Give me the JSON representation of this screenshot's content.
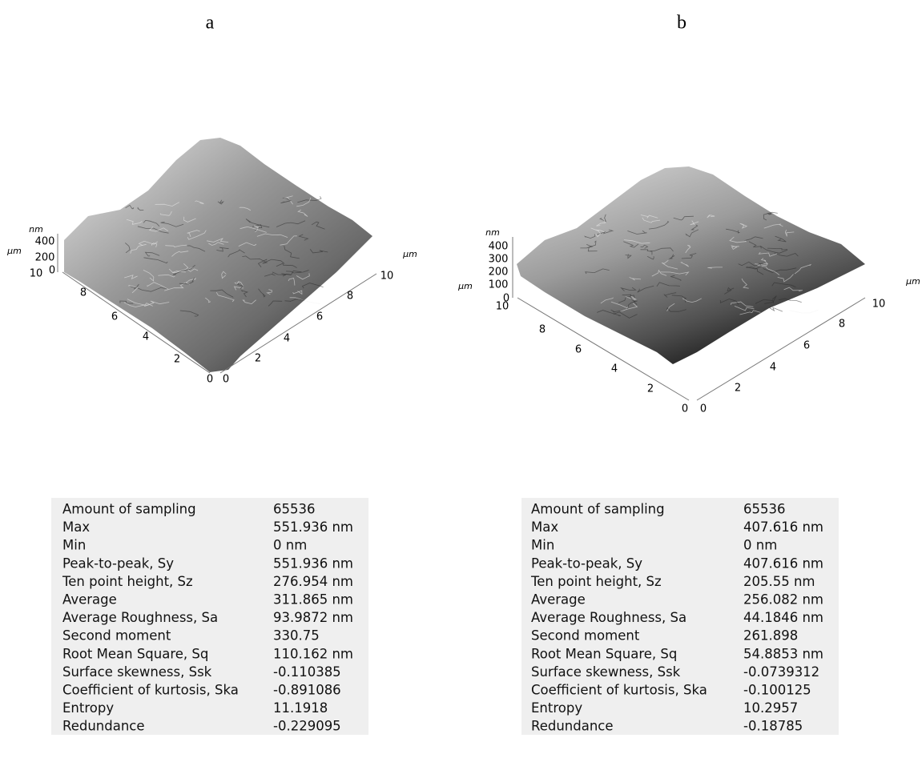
{
  "panels": [
    {
      "label": "a",
      "z_unit": "nm",
      "left_unit": "µm",
      "right_unit": "µm",
      "z_ticks": [
        "400",
        "200",
        "0"
      ],
      "left_ticks": [
        "10",
        "8",
        "6",
        "4",
        "2",
        "0"
      ],
      "right_ticks": [
        "0",
        "2",
        "4",
        "6",
        "8",
        "10"
      ],
      "table": [
        [
          "Amount of sampling",
          "65536"
        ],
        [
          "Max",
          "551.936 nm"
        ],
        [
          "Min",
          "0 nm"
        ],
        [
          "Peak-to-peak, Sy",
          "551.936 nm"
        ],
        [
          "Ten point height, Sz",
          "276.954 nm"
        ],
        [
          "Average",
          "311.865 nm"
        ],
        [
          "Average Roughness, Sa",
          "93.9872 nm"
        ],
        [
          "Second moment",
          "330.75"
        ],
        [
          "Root Mean Square, Sq",
          "110.162 nm"
        ],
        [
          "Surface skewness, Ssk",
          "-0.110385"
        ],
        [
          "Coefficient of kurtosis, Ska",
          "-0.891086"
        ],
        [
          "Entropy",
          "11.1918"
        ],
        [
          "Redundance",
          "-0.229095"
        ]
      ]
    },
    {
      "label": "b",
      "z_unit": "nm",
      "left_unit": "µm",
      "right_unit": "µm",
      "z_ticks": [
        "400",
        "300",
        "200",
        "100",
        "0"
      ],
      "left_ticks": [
        "10",
        "8",
        "6",
        "4",
        "2",
        "0"
      ],
      "right_ticks": [
        "0",
        "2",
        "4",
        "6",
        "8",
        "10"
      ],
      "table": [
        [
          "Amount of sampling",
          "65536"
        ],
        [
          "Max",
          "407.616 nm"
        ],
        [
          "Min",
          "0 nm"
        ],
        [
          "Peak-to-peak, Sy",
          "407.616 nm"
        ],
        [
          "Ten point height, Sz",
          "205.55 nm"
        ],
        [
          "Average",
          "256.082 nm"
        ],
        [
          "Average Roughness, Sa",
          "44.1846 nm"
        ],
        [
          "Second moment",
          "261.898"
        ],
        [
          "Root Mean Square, Sq",
          "54.8853 nm"
        ],
        [
          "Surface skewness, Ssk",
          "-0.0739312"
        ],
        [
          "Coefficient of kurtosis, Ska",
          "-0.100125"
        ],
        [
          "Entropy",
          "10.2957"
        ],
        [
          "Redundance",
          "-0.18785"
        ]
      ]
    }
  ]
}
